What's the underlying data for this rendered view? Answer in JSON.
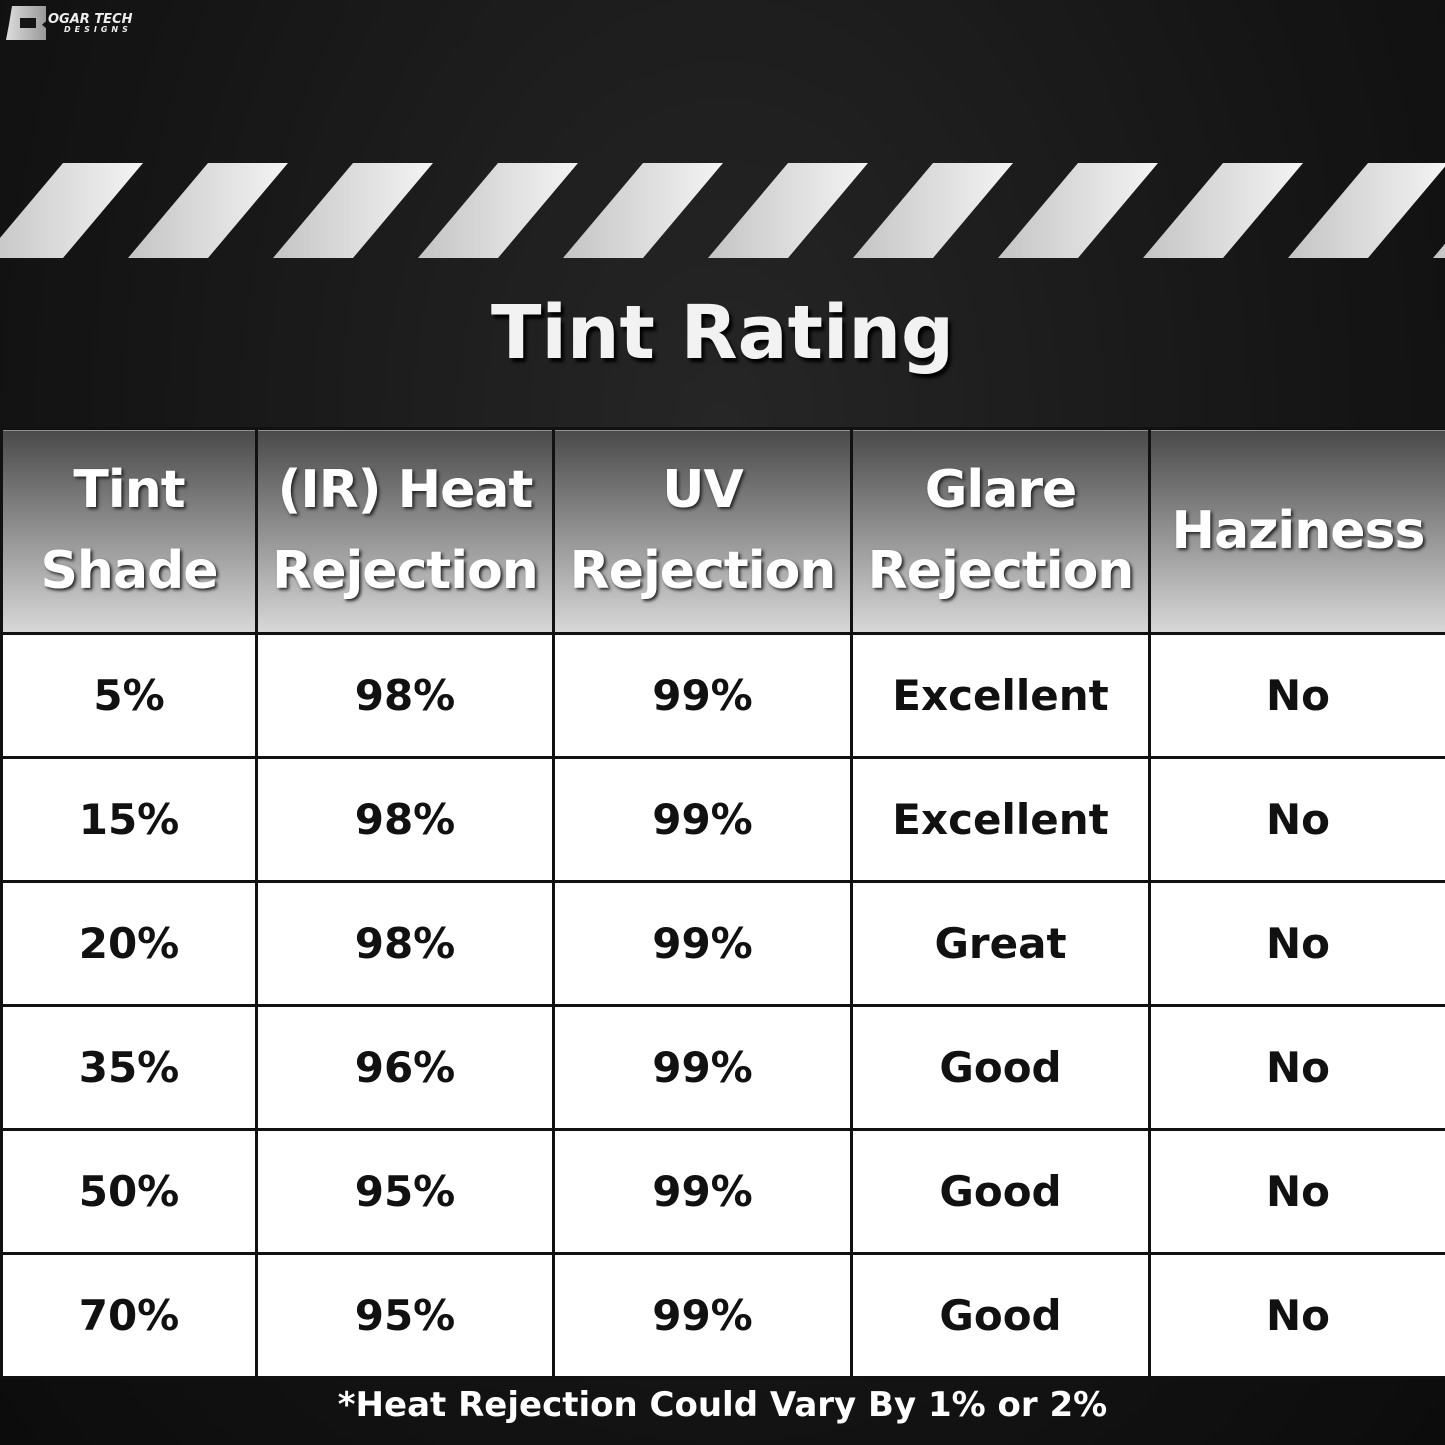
{
  "logo": {
    "line1": "OGAR TECH",
    "line2": "DESIGNS"
  },
  "title": "Tint Rating",
  "table": {
    "headers": [
      [
        "Tint",
        "Shade"
      ],
      [
        "(IR) Heat",
        "Rejection"
      ],
      [
        "UV",
        "Rejection"
      ],
      [
        "Glare",
        "Rejection"
      ],
      [
        "Haziness",
        ""
      ]
    ],
    "rows": [
      [
        "5%",
        "98%",
        "99%",
        "Excellent",
        "No"
      ],
      [
        "15%",
        "98%",
        "99%",
        "Excellent",
        "No"
      ],
      [
        "20%",
        "98%",
        "99%",
        "Great",
        "No"
      ],
      [
        "35%",
        "96%",
        "99%",
        "Good",
        "No"
      ],
      [
        "50%",
        "95%",
        "99%",
        "Good",
        "No"
      ],
      [
        "70%",
        "95%",
        "99%",
        "Good",
        "No"
      ]
    ]
  },
  "footnote": "*Heat Rejection Could Vary By 1% or 2%"
}
